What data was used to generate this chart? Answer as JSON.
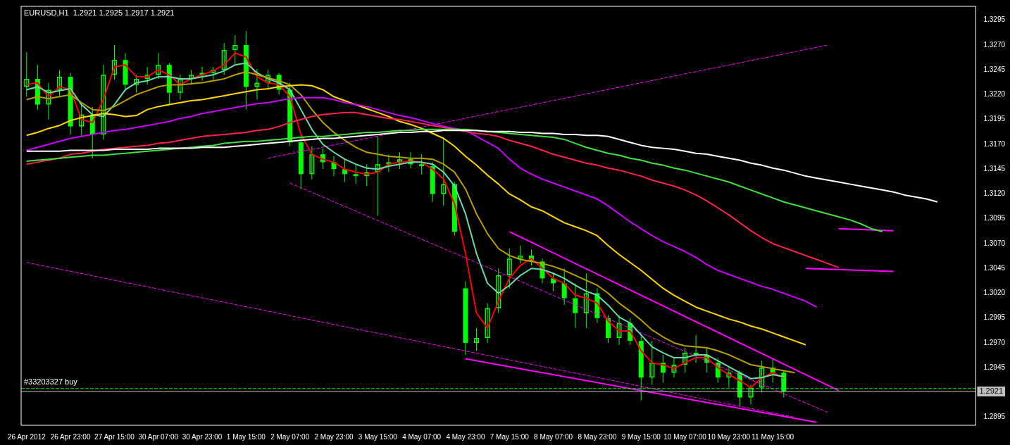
{
  "chart_data": {
    "type": "candlestick",
    "title": "EURUSD,H1  1.2921 1.2925 1.2917 1.2921",
    "color": "#00ff00",
    "marker": "none",
    "categories": [
      "26 Apr 2012",
      null,
      null,
      null,
      "26 Apr 23:00",
      null,
      null,
      null,
      "27 Apr 15:00",
      null,
      null,
      null,
      "30 Apr 07:00",
      null,
      null,
      null,
      "30 Apr 23:00",
      null,
      null,
      null,
      "1 May 15:00",
      null,
      null,
      null,
      "2 May 07:00",
      null,
      null,
      null,
      "2 May 23:00",
      null,
      null,
      null,
      "3 May 15:00",
      null,
      null,
      null,
      "4 May 07:00",
      null,
      null,
      null,
      "4 May 23:00",
      null,
      null,
      null,
      "7 May 15:00",
      null,
      null,
      null,
      "8 May 07:00",
      null,
      null,
      null,
      "8 May 23:00",
      null,
      null,
      null,
      "9 May 15:00",
      null,
      null,
      null,
      "10 May 07:00",
      null,
      null,
      null,
      "10 May 23:00",
      null,
      null,
      null,
      "11 May 15:00",
      null,
      null,
      null,
      null,
      null,
      null,
      null,
      null,
      null,
      null,
      null,
      null,
      null,
      null,
      null,
      null,
      null,
      null
    ],
    "ohlc": [
      [
        1.3228,
        1.3263,
        1.3218,
        1.3236
      ],
      [
        1.3236,
        1.325,
        1.3205,
        1.321
      ],
      [
        1.321,
        1.3232,
        1.3195,
        1.3225
      ],
      [
        1.3225,
        1.3245,
        1.3218,
        1.3238
      ],
      [
        1.3238,
        1.3242,
        1.318,
        1.3188
      ],
      [
        1.3188,
        1.321,
        1.3178,
        1.32
      ],
      [
        1.32,
        1.3208,
        1.3156,
        1.318
      ],
      [
        1.318,
        1.325,
        1.3175,
        1.324
      ],
      [
        1.324,
        1.327,
        1.3235,
        1.3255
      ],
      [
        1.3255,
        1.3262,
        1.3225,
        1.323
      ],
      [
        1.323,
        1.324,
        1.3222,
        1.3236
      ],
      [
        1.3236,
        1.3248,
        1.323,
        1.324
      ],
      [
        1.324,
        1.3262,
        1.3236,
        1.325
      ],
      [
        1.325,
        1.3252,
        1.321,
        1.3222
      ],
      [
        1.3222,
        1.324,
        1.3215,
        1.3236
      ],
      [
        1.3236,
        1.3245,
        1.323,
        1.324
      ],
      [
        1.324,
        1.3248,
        1.3234,
        1.3242
      ],
      [
        1.3242,
        1.3248,
        1.3235,
        1.3245
      ],
      [
        1.3245,
        1.3272,
        1.324,
        1.3265
      ],
      [
        1.3265,
        1.328,
        1.325,
        1.327
      ],
      [
        1.327,
        1.3284,
        1.3205,
        1.3228
      ],
      [
        1.3228,
        1.3246,
        1.3215,
        1.3232
      ],
      [
        1.3232,
        1.3245,
        1.3226,
        1.324
      ],
      [
        1.324,
        1.3242,
        1.322,
        1.3225
      ],
      [
        1.3225,
        1.3232,
        1.3168,
        1.3172
      ],
      [
        1.3172,
        1.3178,
        1.3125,
        1.314
      ],
      [
        1.314,
        1.3168,
        1.3135,
        1.316
      ],
      [
        1.316,
        1.3166,
        1.3145,
        1.3152
      ],
      [
        1.3152,
        1.3158,
        1.3138,
        1.3145
      ],
      [
        1.3145,
        1.3155,
        1.3132,
        1.314
      ],
      [
        1.314,
        1.315,
        1.313,
        1.3138
      ],
      [
        1.3138,
        1.315,
        1.3128,
        1.3142
      ],
      [
        1.3142,
        1.3178,
        1.3098,
        1.315
      ],
      [
        1.315,
        1.316,
        1.3142,
        1.3152
      ],
      [
        1.3152,
        1.3162,
        1.3145,
        1.3155
      ],
      [
        1.3155,
        1.3162,
        1.3146,
        1.315
      ],
      [
        1.315,
        1.316,
        1.314,
        1.3148
      ],
      [
        1.3148,
        1.3152,
        1.3112,
        1.312
      ],
      [
        1.312,
        1.3177,
        1.3108,
        1.313
      ],
      [
        1.313,
        1.3132,
        1.3078,
        1.3082
      ],
      [
        1.3025,
        1.3032,
        1.2958,
        1.297
      ],
      [
        1.297,
        1.2985,
        1.2962,
        1.2975
      ],
      [
        1.2975,
        1.301,
        1.297,
        1.3005
      ],
      [
        1.3005,
        1.3045,
        1.3,
        1.3038
      ],
      [
        1.3038,
        1.3065,
        1.3025,
        1.3055
      ],
      [
        1.3055,
        1.3068,
        1.305,
        1.3058
      ],
      [
        1.3058,
        1.3064,
        1.3048,
        1.3052
      ],
      [
        1.3052,
        1.3055,
        1.303,
        1.3035
      ],
      [
        1.3035,
        1.304,
        1.3022,
        1.303
      ],
      [
        1.303,
        1.3045,
        1.3008,
        1.3015
      ],
      [
        1.3015,
        1.303,
        1.2985,
        1.3
      ],
      [
        1.3,
        1.304,
        1.2985,
        1.302
      ],
      [
        1.302,
        1.3025,
        1.299,
        1.2995
      ],
      [
        1.2995,
        1.2998,
        1.297,
        1.2975
      ],
      [
        1.2975,
        1.2998,
        1.2968,
        1.299
      ],
      [
        1.299,
        1.2995,
        1.2968,
        1.2972
      ],
      [
        1.2972,
        1.2978,
        1.2912,
        1.2935
      ],
      [
        1.2935,
        1.2972,
        1.2928,
        1.295
      ],
      [
        1.295,
        1.2958,
        1.293,
        1.294
      ],
      [
        1.294,
        1.2955,
        1.2935,
        1.2948
      ],
      [
        1.2948,
        1.2965,
        1.294,
        1.296
      ],
      [
        1.296,
        1.2978,
        1.295,
        1.2958
      ],
      [
        1.2958,
        1.2966,
        1.294,
        1.295
      ],
      [
        1.295,
        1.2955,
        1.293,
        1.2935
      ],
      [
        1.2935,
        1.2945,
        1.2925,
        1.294
      ],
      [
        1.294,
        1.2942,
        1.2906,
        1.2915
      ],
      [
        1.2915,
        1.2928,
        1.2908,
        1.2925
      ],
      [
        1.2925,
        1.2952,
        1.292,
        1.2945
      ],
      [
        1.2945,
        1.2954,
        1.293,
        1.294
      ],
      [
        1.294,
        1.2942,
        1.2915,
        1.2921
      ],
      null,
      null,
      null,
      null,
      null,
      null,
      null,
      null,
      null,
      null,
      null,
      null,
      null,
      null,
      null,
      null,
      null
    ],
    "series": [
      {
        "type": "line",
        "color": "#ffffff",
        "line_style": "solid",
        "values": [
          1.3163,
          1.3163,
          1.3163,
          1.3163,
          1.3164,
          1.3164,
          1.3164,
          1.3164,
          1.3165,
          1.3165,
          1.3165,
          1.3165,
          1.3166,
          1.3166,
          1.3166,
          1.3166,
          1.3167,
          1.3167,
          1.3167,
          1.3168,
          1.3169,
          1.317,
          1.3171,
          1.3172,
          1.3173,
          1.3174,
          1.3175,
          1.3176,
          1.3176,
          1.3177,
          1.3178,
          1.3179,
          1.318,
          1.3181,
          1.3182,
          1.3182,
          1.3183,
          1.3183,
          1.3184,
          1.3184,
          1.3184,
          1.3184,
          1.3183,
          1.3183,
          1.3183,
          1.3182,
          1.3182,
          1.3181,
          1.3181,
          1.318,
          1.318,
          1.3179,
          1.3179,
          1.3178,
          1.3175,
          1.3172,
          1.3169,
          1.3167,
          1.3166,
          1.3165,
          1.3163,
          1.3161,
          1.316,
          1.3158,
          1.3156,
          1.3154,
          1.3151,
          1.3149,
          1.3146,
          1.3144,
          1.3141,
          1.3138,
          1.3136,
          1.3134,
          1.3132,
          1.313,
          1.3128,
          1.3126,
          1.3124,
          1.3122,
          1.3119,
          1.3117,
          1.3115,
          1.3112,
          null,
          null,
          null
        ]
      },
      {
        "type": "line",
        "color": "#40e040",
        "line_style": "solid",
        "values": [
          1.3153,
          1.3154,
          1.3155,
          1.3156,
          1.3157,
          1.3158,
          1.3159,
          1.3159,
          1.316,
          1.3161,
          1.3162,
          1.3163,
          1.3164,
          1.3165,
          1.3166,
          1.3167,
          1.3168,
          1.3169,
          1.3171,
          1.3172,
          1.3173,
          1.3173,
          1.3174,
          1.3175,
          1.3176,
          1.3177,
          1.3178,
          1.3178,
          1.3179,
          1.318,
          1.3181,
          1.3182,
          1.3182,
          1.3183,
          1.3184,
          1.3184,
          1.3185,
          1.3185,
          1.3185,
          1.3185,
          1.3185,
          1.3184,
          1.3183,
          1.3182,
          1.3181,
          1.318,
          1.3179,
          1.3178,
          1.3177,
          1.3175,
          1.3171,
          1.3167,
          1.3164,
          1.3161,
          1.3159,
          1.3156,
          1.3154,
          1.3151,
          1.3149,
          1.3146,
          1.3144,
          1.3141,
          1.3138,
          1.3135,
          1.3132,
          1.3128,
          1.3124,
          1.312,
          1.3116,
          1.3112,
          1.3109,
          1.3106,
          1.3103,
          1.31,
          1.3097,
          1.3094,
          1.309,
          1.3085,
          1.3082,
          null,
          null,
          null,
          null,
          null,
          null,
          null,
          null
        ]
      },
      {
        "type": "line",
        "color": "#ff2050",
        "line_style": "solid",
        "values": [
          1.315,
          1.3152,
          1.3154,
          1.3156,
          1.316,
          1.3161,
          1.3163,
          1.3165,
          1.3166,
          1.3167,
          1.3168,
          1.3169,
          1.3171,
          1.3172,
          1.3174,
          1.3176,
          1.3178,
          1.3179,
          1.318,
          1.3181,
          1.3182,
          1.3184,
          1.3185,
          1.3188,
          1.3192,
          1.3195,
          1.3198,
          1.32,
          1.3201,
          1.3202,
          1.3202,
          1.32,
          1.3198,
          1.3196,
          1.3195,
          1.3193,
          1.3191,
          1.3189,
          1.3187,
          1.3185,
          1.3183,
          1.3181,
          1.318,
          1.3178,
          1.3174,
          1.3171,
          1.3168,
          1.3164,
          1.316,
          1.3157,
          1.3154,
          1.3151,
          1.3149,
          1.3146,
          1.3144,
          1.3141,
          1.3138,
          1.3134,
          1.3131,
          1.3128,
          1.3124,
          1.3119,
          1.3113,
          1.3106,
          1.3099,
          1.3091,
          1.3083,
          1.3076,
          1.307,
          1.3066,
          1.3062,
          1.3058,
          1.3054,
          1.305,
          1.3046,
          null,
          null,
          null,
          null,
          null,
          null,
          null,
          null,
          null,
          null,
          null,
          null
        ]
      },
      {
        "type": "line",
        "color": "#cc00ff",
        "line_style": "solid",
        "values": [
          1.3164,
          1.3167,
          1.317,
          1.3173,
          1.3176,
          1.3178,
          1.318,
          1.3182,
          1.3184,
          1.3185,
          1.3187,
          1.3189,
          1.3191,
          1.3193,
          1.3196,
          1.3198,
          1.3201,
          1.3203,
          1.3205,
          1.3207,
          1.3209,
          1.3211,
          1.3212,
          1.3214,
          1.3216,
          1.3217,
          1.3217,
          1.3217,
          1.3215,
          1.3212,
          1.321,
          1.3208,
          1.3205,
          1.3202,
          1.3199,
          1.3197,
          1.3194,
          1.3191,
          1.3188,
          1.3186,
          1.3184,
          1.3178,
          1.3172,
          1.3166,
          1.3155,
          1.3146,
          1.314,
          1.3135,
          1.3131,
          1.3127,
          1.3123,
          1.3119,
          1.3115,
          1.3108,
          1.31,
          1.3092,
          1.3085,
          1.3078,
          1.3072,
          1.3067,
          1.3062,
          1.3056,
          1.3049,
          1.3043,
          1.3039,
          1.3035,
          1.3031,
          1.3027,
          1.3024,
          1.302,
          1.3016,
          1.3012,
          1.3006,
          null,
          null,
          null,
          null,
          null,
          null,
          null,
          null,
          null,
          null,
          null,
          null,
          null,
          null
        ]
      },
      {
        "type": "line",
        "color": "#ffd700",
        "line_style": "solid",
        "values": [
          1.3179,
          1.3182,
          1.3186,
          1.3189,
          1.3194,
          1.3197,
          1.3199,
          1.3201,
          1.32,
          1.3198,
          1.3199,
          1.3205,
          1.3208,
          1.321,
          1.3212,
          1.3214,
          1.3215,
          1.3217,
          1.3219,
          1.3221,
          1.3223,
          1.3225,
          1.3226,
          1.3228,
          1.3229,
          1.323,
          1.3229,
          1.3225,
          1.3218,
          1.3214,
          1.321,
          1.3206,
          1.3202,
          1.3198,
          1.3193,
          1.319,
          1.3186,
          1.3181,
          1.3176,
          1.3168,
          1.3158,
          1.3149,
          1.3139,
          1.313,
          1.312,
          1.3114,
          1.3107,
          1.3103,
          1.3097,
          1.3091,
          1.3087,
          1.3083,
          1.3078,
          1.3068,
          1.3059,
          1.3051,
          1.3043,
          1.3034,
          1.3025,
          1.3018,
          1.3012,
          1.3006,
          1.3002,
          1.2998,
          1.2994,
          1.2991,
          1.2987,
          1.2984,
          1.298,
          1.2976,
          1.2972,
          1.2968,
          null,
          null,
          null,
          null,
          null,
          null,
          null,
          null,
          null,
          null,
          null,
          null,
          null,
          null,
          null
        ]
      },
      {
        "type": "line",
        "color": "#b8a000",
        "line_style": "solid",
        "values": [
          1.3215,
          1.3218,
          1.3216,
          1.3218,
          1.322,
          1.3212,
          1.3205,
          1.3204,
          1.3208,
          1.3214,
          1.322,
          1.3224,
          1.3228,
          1.323,
          1.323,
          1.3231,
          1.3232,
          1.3234,
          1.3236,
          1.324,
          1.3243,
          1.324,
          1.3237,
          1.3234,
          1.323,
          1.322,
          1.3205,
          1.3192,
          1.3182,
          1.3174,
          1.3167,
          1.3162,
          1.316,
          1.3158,
          1.3157,
          1.3156,
          1.3156,
          1.3155,
          1.315,
          1.3142,
          1.3125,
          1.31,
          1.308,
          1.3065,
          1.3058,
          1.3054,
          1.3052,
          1.305,
          1.3047,
          1.3043,
          1.3038,
          1.3033,
          1.3028,
          1.302,
          1.301,
          1.3002,
          1.2993,
          1.2983,
          1.2976,
          1.297,
          1.2967,
          1.2966,
          1.2965,
          1.2962,
          1.2958,
          1.2953,
          1.2948,
          1.2946,
          1.2944,
          1.2942,
          1.294,
          null,
          null,
          null,
          null,
          null,
          null,
          null,
          null,
          null,
          null,
          null,
          null,
          null,
          null,
          null,
          null
        ]
      },
      {
        "type": "line",
        "color": "#66ddaa",
        "line_style": "solid",
        "values": [
          1.3225,
          1.3228,
          1.3222,
          1.3224,
          1.3226,
          1.321,
          1.32,
          1.3198,
          1.321,
          1.3225,
          1.3232,
          1.3234,
          1.3238,
          1.3238,
          1.3236,
          1.3236,
          1.3238,
          1.324,
          1.3244,
          1.325,
          1.3252,
          1.3242,
          1.3236,
          1.3232,
          1.3225,
          1.3205,
          1.3185,
          1.317,
          1.3162,
          1.3155,
          1.315,
          1.3146,
          1.3145,
          1.3148,
          1.315,
          1.3152,
          1.3152,
          1.315,
          1.3142,
          1.3128,
          1.31,
          1.306,
          1.303,
          1.302,
          1.3028,
          1.3038,
          1.3045,
          1.3044,
          1.304,
          1.3035,
          1.3028,
          1.3022,
          1.3018,
          1.3008,
          1.2996,
          1.299,
          1.2978,
          1.2966,
          1.296,
          1.2955,
          1.2955,
          1.2958,
          1.2958,
          1.2952,
          1.2946,
          1.294,
          1.2934,
          1.2935,
          1.2938,
          1.2936,
          null,
          null,
          null,
          null,
          null,
          null,
          null,
          null,
          null,
          null,
          null,
          null,
          null,
          null,
          null,
          null,
          null
        ]
      },
      {
        "type": "line",
        "color": "#ff0000",
        "line_style": "solid",
        "values": [
          1.323,
          1.3232,
          1.3218,
          1.3228,
          1.3225,
          1.3195,
          1.3192,
          1.3215,
          1.3248,
          1.325,
          1.3238,
          1.3238,
          1.3245,
          1.324,
          1.323,
          1.3236,
          1.324,
          1.3244,
          1.325,
          1.3262,
          1.3258,
          1.3238,
          1.3232,
          1.323,
          1.3218,
          1.318,
          1.316,
          1.3155,
          1.3152,
          1.3145,
          1.3142,
          1.314,
          1.3142,
          1.315,
          1.3152,
          1.3153,
          1.3152,
          1.3145,
          1.3135,
          1.311,
          1.306,
          1.3,
          1.2985,
          1.3012,
          1.3035,
          1.3048,
          1.3055,
          1.3045,
          1.3035,
          1.303,
          1.3018,
          1.3015,
          1.301,
          1.2992,
          1.2982,
          1.2982,
          1.2962,
          1.295,
          1.2948,
          1.2944,
          1.295,
          1.2955,
          1.2955,
          1.2945,
          1.2938,
          1.2932,
          1.2925,
          1.2935,
          1.294,
          1.2935,
          null,
          null,
          null,
          null,
          null,
          null,
          null,
          null,
          null,
          null,
          null,
          null,
          null,
          null,
          null,
          null,
          null
        ]
      },
      {
        "type": "line",
        "color": "#ff00ff",
        "line_style": "dashed",
        "values": [
          null,
          null,
          null,
          null,
          null,
          null,
          null,
          null,
          null,
          null,
          null,
          null,
          null,
          null,
          null,
          null,
          null,
          null,
          null,
          null,
          null,
          null,
          1.3156,
          null,
          null,
          null,
          null,
          null,
          null,
          null,
          null,
          null,
          null,
          null,
          null,
          null,
          null,
          null,
          null,
          null,
          null,
          null,
          null,
          null,
          null,
          null,
          null,
          null,
          null,
          null,
          null,
          null,
          null,
          null,
          null,
          null,
          null,
          null,
          null,
          null,
          null,
          null,
          null,
          null,
          null,
          null,
          null,
          null,
          null,
          null,
          null,
          null,
          null,
          1.327,
          null,
          null,
          null,
          null,
          null,
          null,
          null,
          null,
          null,
          null,
          null,
          null,
          null
        ]
      },
      {
        "type": "line",
        "color": "#ff00ff",
        "line_style": "dashed",
        "values": [
          null,
          null,
          null,
          null,
          null,
          null,
          null,
          null,
          null,
          null,
          null,
          null,
          null,
          null,
          null,
          null,
          null,
          null,
          null,
          null,
          null,
          null,
          null,
          null,
          1.3131,
          null,
          null,
          null,
          null,
          null,
          null,
          null,
          null,
          null,
          null,
          null,
          null,
          null,
          null,
          null,
          null,
          null,
          null,
          null,
          null,
          null,
          null,
          null,
          null,
          null,
          null,
          null,
          null,
          null,
          null,
          null,
          null,
          null,
          null,
          null,
          null,
          null,
          null,
          null,
          null,
          null,
          null,
          null,
          null,
          null,
          null,
          null,
          null,
          1.29,
          null,
          null,
          null,
          null,
          null,
          null,
          null,
          null,
          null,
          null,
          null,
          null,
          null
        ]
      },
      {
        "type": "line",
        "color": "#ff00ff",
        "line_style": "dashed",
        "values": [
          1.3051,
          null,
          null,
          null,
          null,
          null,
          null,
          null,
          null,
          null,
          null,
          null,
          null,
          null,
          null,
          null,
          null,
          null,
          null,
          null,
          null,
          null,
          null,
          null,
          null,
          null,
          null,
          null,
          null,
          null,
          null,
          null,
          null,
          null,
          null,
          null,
          null,
          null,
          null,
          null,
          null,
          null,
          null,
          null,
          null,
          null,
          null,
          null,
          null,
          null,
          null,
          null,
          null,
          null,
          null,
          null,
          null,
          null,
          null,
          null,
          null,
          null,
          null,
          null,
          null,
          null,
          null,
          null,
          null,
          null,
          1.2895,
          null,
          null,
          null,
          null,
          null,
          null,
          null,
          null,
          null,
          null,
          null,
          null,
          null,
          null,
          null,
          null
        ]
      },
      {
        "type": "line",
        "color": "#ff00ff",
        "line_style": "solid",
        "values": [
          null,
          null,
          null,
          null,
          null,
          null,
          null,
          null,
          null,
          null,
          null,
          null,
          null,
          null,
          null,
          null,
          null,
          null,
          null,
          null,
          null,
          null,
          null,
          null,
          null,
          null,
          null,
          null,
          null,
          null,
          null,
          null,
          null,
          null,
          null,
          null,
          null,
          null,
          null,
          null,
          null,
          null,
          null,
          null,
          1.3082,
          null,
          null,
          null,
          null,
          null,
          null,
          null,
          null,
          null,
          null,
          null,
          null,
          null,
          null,
          null,
          null,
          null,
          null,
          null,
          null,
          null,
          null,
          null,
          null,
          null,
          null,
          null,
          null,
          null,
          1.2922,
          null,
          null,
          null,
          null,
          null,
          null,
          null,
          null,
          null,
          null,
          null,
          null
        ]
      },
      {
        "type": "line",
        "color": "#ff00ff",
        "line_style": "solid",
        "values": [
          null,
          null,
          null,
          null,
          null,
          null,
          null,
          null,
          null,
          null,
          null,
          null,
          null,
          null,
          null,
          null,
          null,
          null,
          null,
          null,
          null,
          null,
          null,
          null,
          null,
          null,
          null,
          null,
          null,
          null,
          null,
          null,
          null,
          null,
          null,
          null,
          null,
          null,
          null,
          null,
          1.2954,
          null,
          null,
          null,
          null,
          null,
          null,
          null,
          null,
          null,
          null,
          null,
          null,
          null,
          null,
          null,
          null,
          null,
          null,
          null,
          null,
          null,
          null,
          null,
          null,
          null,
          null,
          null,
          null,
          null,
          null,
          null,
          1.289,
          null,
          null,
          null,
          null,
          null,
          null,
          null,
          null,
          null,
          null,
          null,
          null,
          null,
          null
        ]
      },
      {
        "type": "line",
        "color": "#ff00ff",
        "line_style": "solid",
        "values": [
          null,
          null,
          null,
          null,
          null,
          null,
          null,
          null,
          null,
          null,
          null,
          null,
          null,
          null,
          null,
          null,
          null,
          null,
          null,
          null,
          null,
          null,
          null,
          null,
          null,
          null,
          null,
          null,
          null,
          null,
          null,
          null,
          null,
          null,
          null,
          null,
          null,
          null,
          null,
          null,
          null,
          null,
          null,
          null,
          null,
          null,
          null,
          null,
          null,
          null,
          null,
          null,
          null,
          null,
          null,
          null,
          null,
          null,
          null,
          null,
          null,
          null,
          null,
          null,
          null,
          null,
          null,
          null,
          null,
          null,
          null,
          null,
          null,
          null,
          1.3085,
          null,
          null,
          null,
          null,
          1.3083,
          null,
          null,
          null,
          null,
          null,
          null,
          null
        ]
      },
      {
        "type": "line",
        "color": "#ff00ff",
        "line_style": "solid",
        "values": [
          null,
          null,
          null,
          null,
          null,
          null,
          null,
          null,
          null,
          null,
          null,
          null,
          null,
          null,
          null,
          null,
          null,
          null,
          null,
          null,
          null,
          null,
          null,
          null,
          null,
          null,
          null,
          null,
          null,
          null,
          null,
          null,
          null,
          null,
          null,
          null,
          null,
          null,
          null,
          null,
          null,
          null,
          null,
          null,
          null,
          null,
          null,
          null,
          null,
          null,
          null,
          null,
          null,
          null,
          null,
          null,
          null,
          null,
          null,
          null,
          null,
          null,
          null,
          null,
          null,
          null,
          null,
          null,
          null,
          null,
          null,
          1.3045,
          null,
          null,
          null,
          null,
          null,
          null,
          null,
          1.3042,
          null,
          null,
          null,
          null,
          null,
          null,
          null
        ]
      }
    ],
    "ref_lines": [
      {
        "axis": "y",
        "value": 1.2924,
        "label": "#33203327 buy",
        "color": "#00ff00",
        "line_style": "dashed"
      },
      {
        "axis": "y",
        "value": 1.2921,
        "label": "1.2921",
        "color": "#c0c0c0",
        "line_style": "solid"
      }
    ],
    "ylim": [
      1.2887,
      1.3309
    ],
    "yticks": [
      1.2895,
      1.2945,
      {
        "value": 1.297,
        "label": "1.2970"
      },
      1.2995,
      {
        "value": 1.302,
        "label": "1.3020"
      },
      1.3045,
      {
        "value": 1.307,
        "label": "1.3070"
      },
      1.3095,
      {
        "value": 1.312,
        "label": "1.3120"
      },
      1.3145,
      {
        "value": 1.317,
        "label": "1.3170"
      },
      1.3195,
      {
        "value": 1.322,
        "label": "1.3220"
      },
      1.3245,
      {
        "value": 1.327,
        "label": "1.3270"
      },
      1.3295
    ]
  }
}
